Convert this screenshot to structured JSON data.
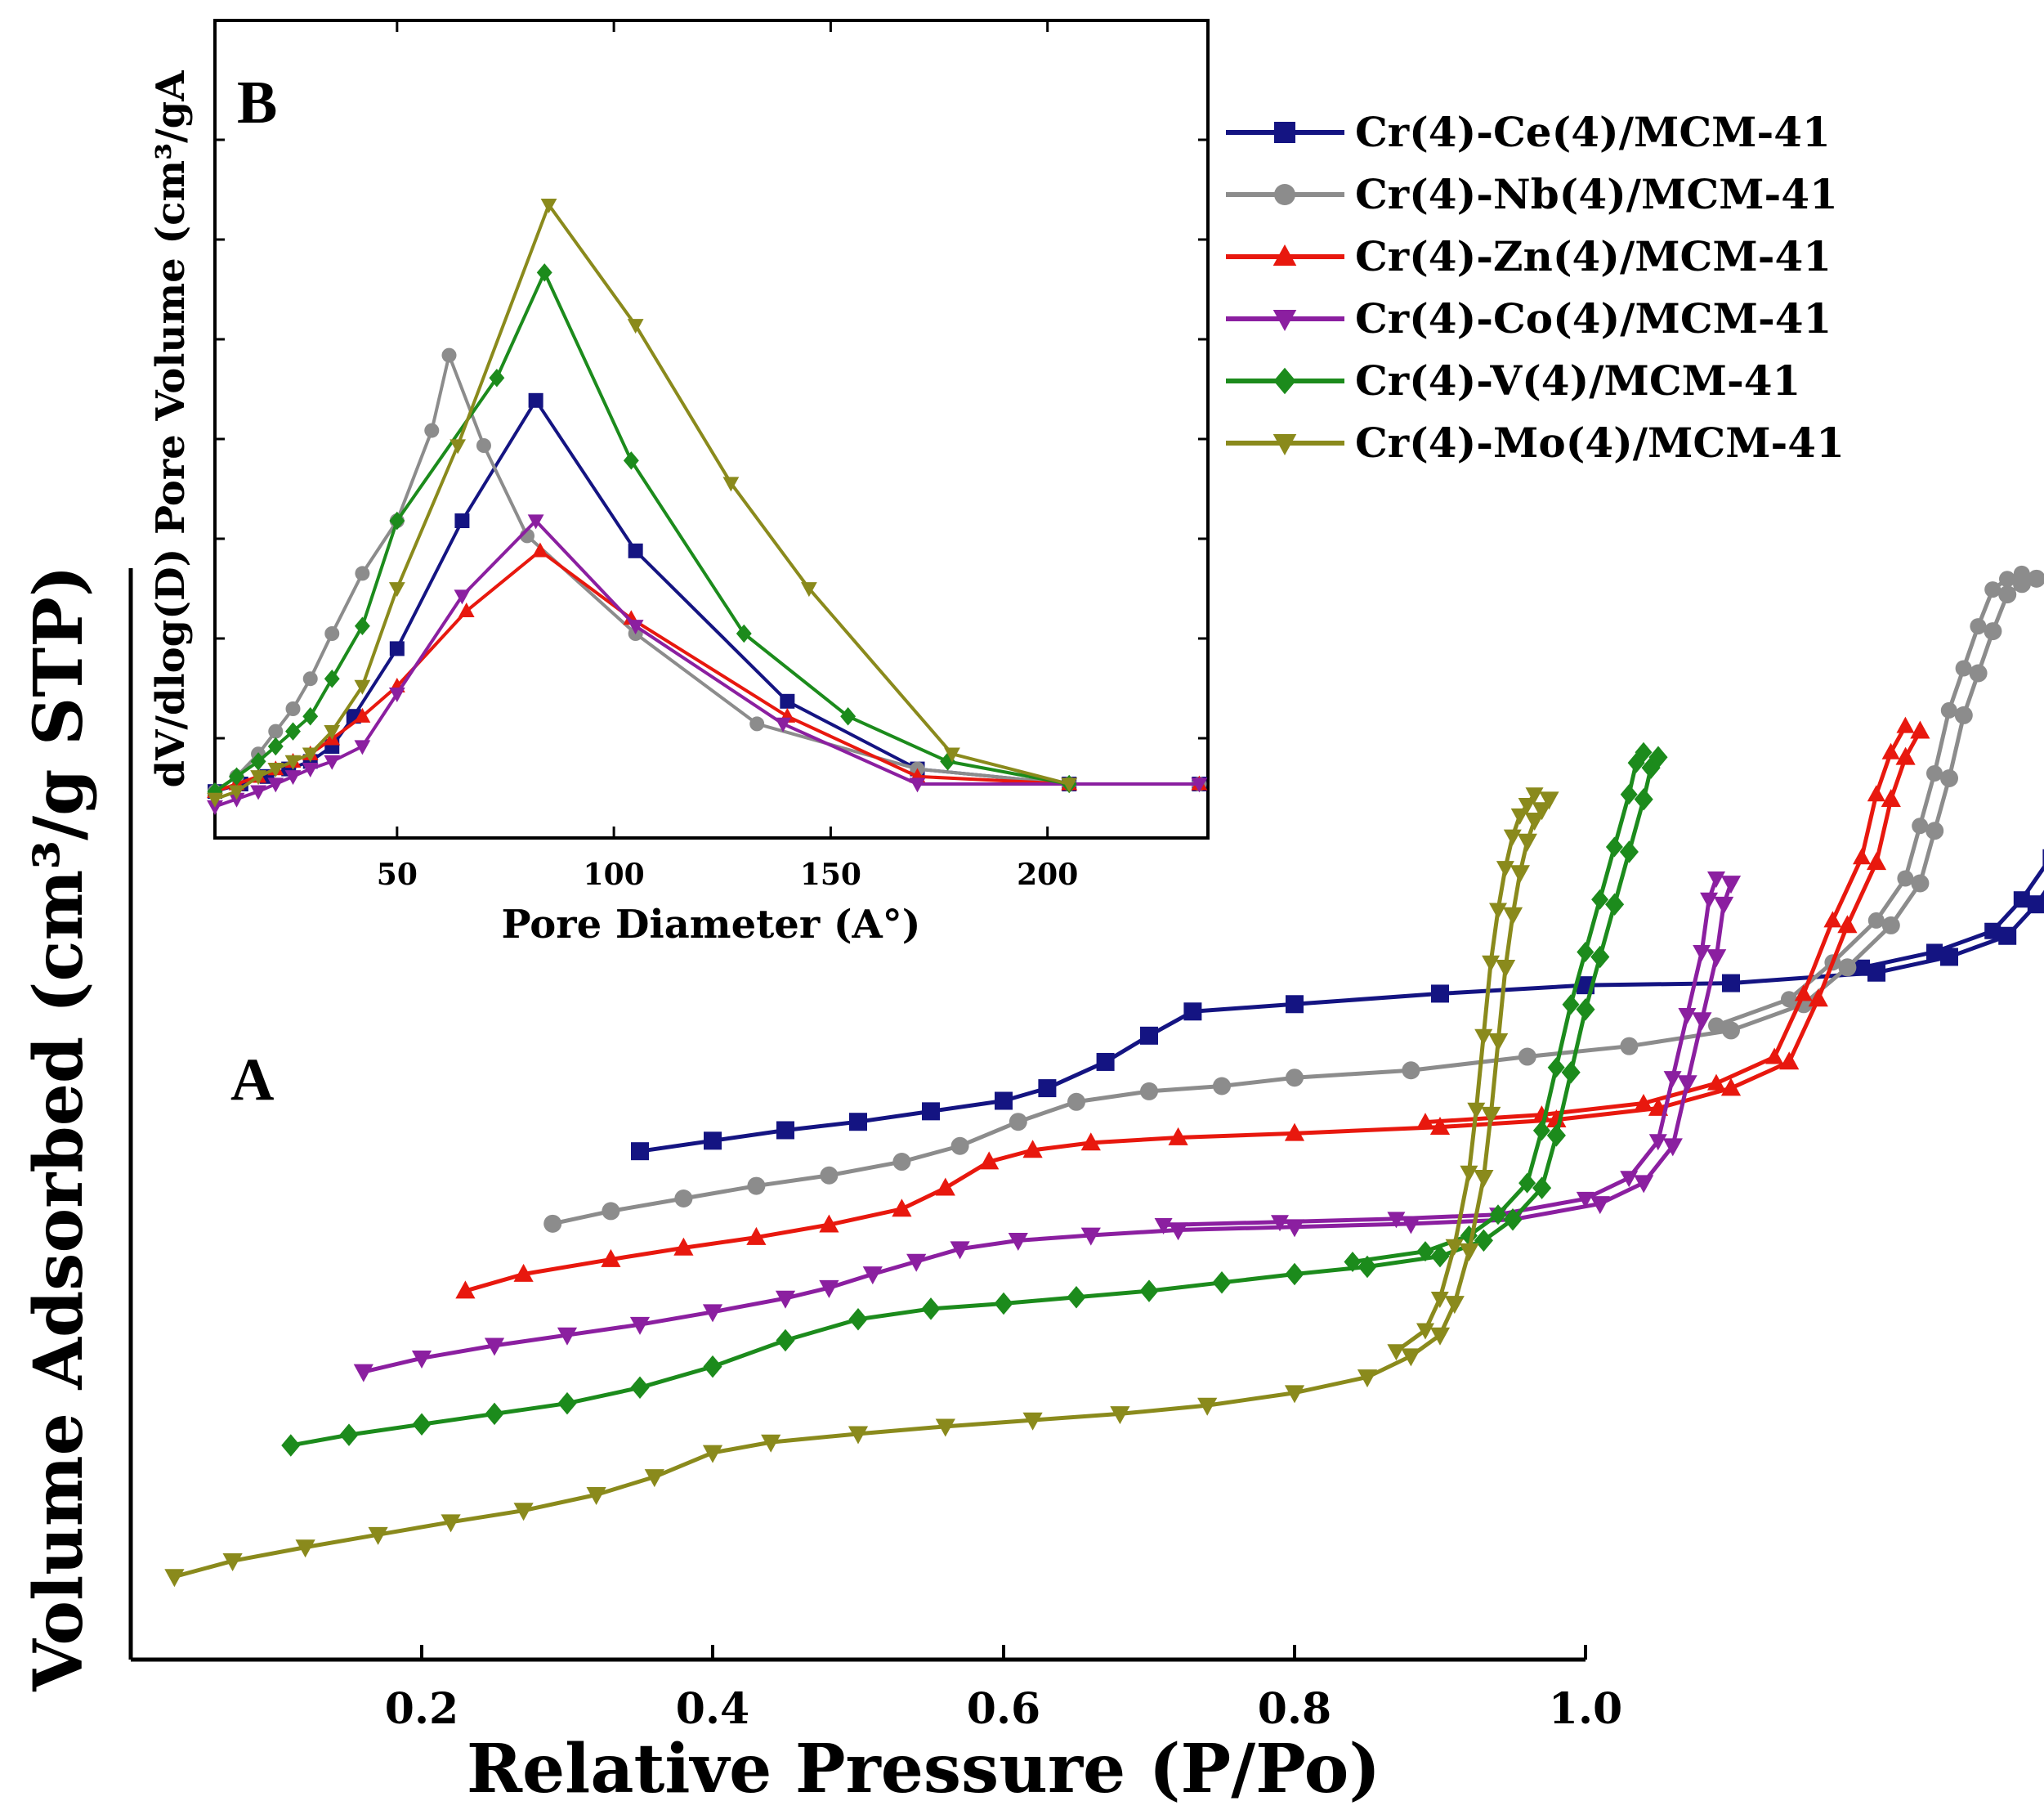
{
  "chart_data": [
    {
      "type": "line",
      "panel": "A",
      "xlabel": "Relative Pressure (P/Po)",
      "ylabel": "Volume Adsorbed (cm³/g STP)",
      "xlim": [
        0.0,
        1.48
      ],
      "ylim": [
        0,
        100
      ],
      "xticks": [
        0.2,
        0.4,
        0.6,
        0.8,
        1.0
      ],
      "xtick_labels": [
        "0.2",
        "0.4",
        "0.6",
        "0.8",
        "1.0"
      ],
      "yticks": [],
      "note": "Isotherms are vertically offset and horizontally shifted for clarity; y values are arbitrary units",
      "series": [
        {
          "name": "Cr(4)-Ce(4)/MCM-41",
          "color": "#141482",
          "marker": "square",
          "x": [
            0.35,
            0.4,
            0.45,
            0.5,
            0.55,
            0.6,
            0.63,
            0.67,
            0.7,
            0.73,
            0.8,
            0.9,
            1.0,
            1.1,
            1.2,
            1.25,
            1.29,
            1.31,
            1.33,
            1.34,
            1.35,
            1.37,
            1.39,
            1.42,
            1.44,
            1.455
          ],
          "y": [
            44.5,
            45.5,
            46.5,
            47.3,
            48.3,
            49.3,
            50.5,
            53,
            55.5,
            57.8,
            58.5,
            59.5,
            60.3,
            60.5,
            61.5,
            63,
            65,
            68,
            72,
            76,
            83,
            90,
            93,
            94.5,
            95.5,
            96
          ]
        },
        {
          "name": "Cr(4)-Nb(4)/MCM-41",
          "color": "#8c8c8c",
          "marker": "circle",
          "x": [
            0.29,
            0.33,
            0.38,
            0.43,
            0.48,
            0.53,
            0.57,
            0.61,
            0.65,
            0.7,
            0.75,
            0.8,
            0.88,
            0.96,
            1.03,
            1.1,
            1.15,
            1.18,
            1.21,
            1.23,
            1.24,
            1.25,
            1.26,
            1.27,
            1.28,
            1.29,
            1.3,
            1.31
          ],
          "y": [
            37.6,
            38.8,
            40,
            41.2,
            42.2,
            43.5,
            45,
            47.3,
            49.2,
            50.2,
            50.7,
            51.5,
            52.2,
            53.5,
            54.5,
            56,
            58.5,
            62,
            66,
            70,
            75,
            80,
            86,
            90,
            94,
            97.5,
            98.5,
            99
          ]
        },
        {
          "name": "Cr(4)-Zn(4)/MCM-41",
          "color": "#e8180e",
          "marker": "triangle-up",
          "x": [
            0.23,
            0.27,
            0.33,
            0.38,
            0.43,
            0.48,
            0.53,
            0.56,
            0.59,
            0.62,
            0.66,
            0.72,
            0.8,
            0.9,
            0.98,
            1.05,
            1.1,
            1.14,
            1.16,
            1.18,
            1.2,
            1.21,
            1.22,
            1.23
          ],
          "y": [
            31.2,
            32.8,
            34.2,
            35.3,
            36.3,
            37.5,
            39,
            41,
            43.5,
            44.6,
            45.3,
            45.8,
            46.2,
            46.8,
            47.5,
            48.6,
            50.5,
            53,
            59,
            66,
            72,
            78,
            82,
            84.5
          ]
        },
        {
          "name": "Cr(4)-Co(4)/MCM-41",
          "color": "#8b1fa0",
          "marker": "triangle-down",
          "x": [
            0.16,
            0.2,
            0.25,
            0.3,
            0.35,
            0.4,
            0.45,
            0.48,
            0.51,
            0.54,
            0.57,
            0.61,
            0.66,
            0.72,
            0.8,
            0.88,
            0.95,
            1.01,
            1.04,
            1.06,
            1.07,
            1.08,
            1.09,
            1.095,
            1.1
          ],
          "y": [
            23.5,
            24.8,
            26.0,
            27.0,
            28.0,
            29.2,
            30.5,
            31.5,
            32.8,
            34.0,
            35.2,
            36.0,
            36.5,
            37.0,
            37.3,
            37.6,
            38.0,
            39.5,
            41.5,
            45,
            51,
            57,
            63,
            68,
            70
          ]
        },
        {
          "name": "Cr(4)-V(4)/MCM-41",
          "color": "#1c8b1c",
          "marker": "diamond",
          "x": [
            0.11,
            0.15,
            0.2,
            0.25,
            0.3,
            0.35,
            0.4,
            0.45,
            0.5,
            0.55,
            0.6,
            0.65,
            0.7,
            0.75,
            0.8,
            0.85,
            0.9,
            0.93,
            0.95,
            0.97,
            0.98,
            0.99,
            1.0,
            1.01,
            1.02,
            1.03,
            1.04,
            1.045,
            1.05
          ],
          "y": [
            16.5,
            17.5,
            18.5,
            19.5,
            20.5,
            22.0,
            24.0,
            26.5,
            28.5,
            29.5,
            30.0,
            30.6,
            31.2,
            32.0,
            32.8,
            33.5,
            34.5,
            36,
            38,
            41,
            46,
            52,
            58,
            63,
            68,
            73,
            78,
            81,
            82
          ]
        },
        {
          "name": "Cr(4)-Mo(4)/MCM-41",
          "color": "#8a8a1c",
          "marker": "triangle-down",
          "x": [
            0.03,
            0.07,
            0.12,
            0.17,
            0.22,
            0.27,
            0.32,
            0.36,
            0.4,
            0.44,
            0.5,
            0.56,
            0.62,
            0.68,
            0.74,
            0.8,
            0.85,
            0.88,
            0.9,
            0.91,
            0.92,
            0.93,
            0.935,
            0.94,
            0.945,
            0.95,
            0.955,
            0.96,
            0.965,
            0.97,
            0.975
          ],
          "y": [
            4,
            5.5,
            6.8,
            8.0,
            9.2,
            10.3,
            11.8,
            13.5,
            15.8,
            16.8,
            17.6,
            18.3,
            18.9,
            19.5,
            20.3,
            21.5,
            23,
            25,
            27,
            30,
            35,
            42,
            48,
            55,
            62,
            67,
            71,
            74,
            76,
            77,
            78
          ]
        }
      ]
    },
    {
      "type": "line",
      "panel": "B",
      "xlabel": "Pore Diameter (A°)",
      "ylabel": "dV/dlog(D) Pore Volume (cm³/gA",
      "xlim": [
        8,
        237
      ],
      "ylim": [
        0,
        100
      ],
      "xticks": [
        50,
        100,
        150,
        200
      ],
      "xtick_labels": [
        "50",
        "100",
        "150",
        "200"
      ],
      "note": "y in arbitrary units (0 = axis bottom, 100 = axis top)",
      "series": [
        {
          "name": "Cr(4)-Ce(4)/MCM-41",
          "color": "#141482",
          "x": [
            8,
            14,
            20,
            25,
            30,
            35,
            40,
            50,
            65,
            82,
            105,
            140,
            170,
            205,
            235
          ],
          "y": [
            4,
            5,
            6,
            7,
            8,
            10,
            14,
            23,
            40,
            56,
            36,
            16,
            7,
            5,
            5
          ]
        },
        {
          "name": "Cr(4)-Nb(4)/MCM-41",
          "color": "#8c8c8c",
          "x": [
            8,
            13,
            18,
            22,
            26,
            30,
            35,
            42,
            50,
            58,
            62,
            70,
            80,
            105,
            133,
            170,
            205,
            235
          ],
          "y": [
            4,
            6,
            9,
            12,
            15,
            19,
            25,
            33,
            40,
            52,
            62,
            50,
            38,
            25,
            13,
            7,
            5,
            5
          ]
        },
        {
          "name": "Cr(4)-Zn(4)/MCM-41",
          "color": "#e8180e",
          "x": [
            8,
            13,
            18,
            22,
            26,
            30,
            35,
            42,
            50,
            66,
            83,
            104,
            140,
            170,
            205,
            235
          ],
          "y": [
            4,
            5,
            6,
            7,
            8,
            9,
            11,
            14,
            18,
            28,
            36,
            27,
            14,
            6,
            5,
            5
          ]
        },
        {
          "name": "Cr(4)-Co(4)/MCM-41",
          "color": "#8b1fa0",
          "x": [
            8,
            13,
            18,
            22,
            26,
            30,
            35,
            42,
            50,
            65,
            82,
            105,
            139,
            170,
            205,
            235
          ],
          "y": [
            2,
            3,
            4,
            5,
            6,
            7,
            8,
            10,
            17,
            30,
            40,
            26,
            13,
            5,
            5,
            5
          ]
        },
        {
          "name": "Cr(4)-V(4)/MCM-41",
          "color": "#1c8b1c",
          "x": [
            8,
            13,
            18,
            22,
            26,
            30,
            35,
            42,
            50,
            73,
            84,
            104,
            130,
            154,
            177,
            205
          ],
          "y": [
            4,
            6,
            8,
            10,
            12,
            14,
            19,
            26,
            40,
            59,
            73,
            48,
            25,
            14,
            8,
            5
          ]
        },
        {
          "name": "Cr(4)-Mo(4)/MCM-41",
          "color": "#8a8a1c",
          "x": [
            8,
            13,
            18,
            22,
            26,
            30,
            35,
            42,
            50,
            64,
            85,
            105,
            127,
            145,
            178,
            205
          ],
          "y": [
            3,
            4,
            6,
            7,
            8,
            9,
            12,
            18,
            31,
            50,
            82,
            66,
            45,
            31,
            9,
            5
          ]
        }
      ]
    }
  ],
  "labels": {
    "panel_a": "A",
    "panel_b": "B"
  },
  "legend": [
    "Cr(4)-Ce(4)/MCM-41",
    "Cr(4)-Nb(4)/MCM-41",
    "Cr(4)-Zn(4)/MCM-41",
    "Cr(4)-Co(4)/MCM-41",
    "Cr(4)-V(4)/MCM-41",
    "Cr(4)-Mo(4)/MCM-41"
  ]
}
